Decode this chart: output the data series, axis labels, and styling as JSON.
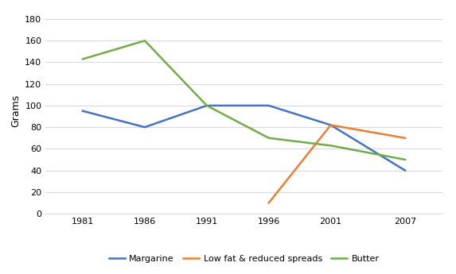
{
  "years": [
    1981,
    1986,
    1991,
    1996,
    2001,
    2007
  ],
  "margarine": [
    95,
    80,
    100,
    100,
    82,
    40
  ],
  "low_fat_years": [
    1996,
    2001,
    2007
  ],
  "low_fat": [
    10,
    82,
    70
  ],
  "butter": [
    143,
    160,
    100,
    70,
    63,
    50
  ],
  "ylabel": "Grams",
  "ylim": [
    0,
    190
  ],
  "yticks": [
    0,
    20,
    40,
    60,
    80,
    100,
    120,
    140,
    160,
    180
  ],
  "xlim_left": 1978,
  "xlim_right": 2010,
  "margarine_color": "#4472C4",
  "low_fat_color": "#ED7D31",
  "butter_color": "#70AD47",
  "legend_labels": [
    "Margarine",
    "Low fat & reduced spreads",
    "Butter"
  ],
  "background_color": "#FFFFFF",
  "grid_color": "#D9D9D9",
  "line_width": 1.8,
  "tick_fontsize": 8,
  "ylabel_fontsize": 9,
  "legend_fontsize": 8
}
